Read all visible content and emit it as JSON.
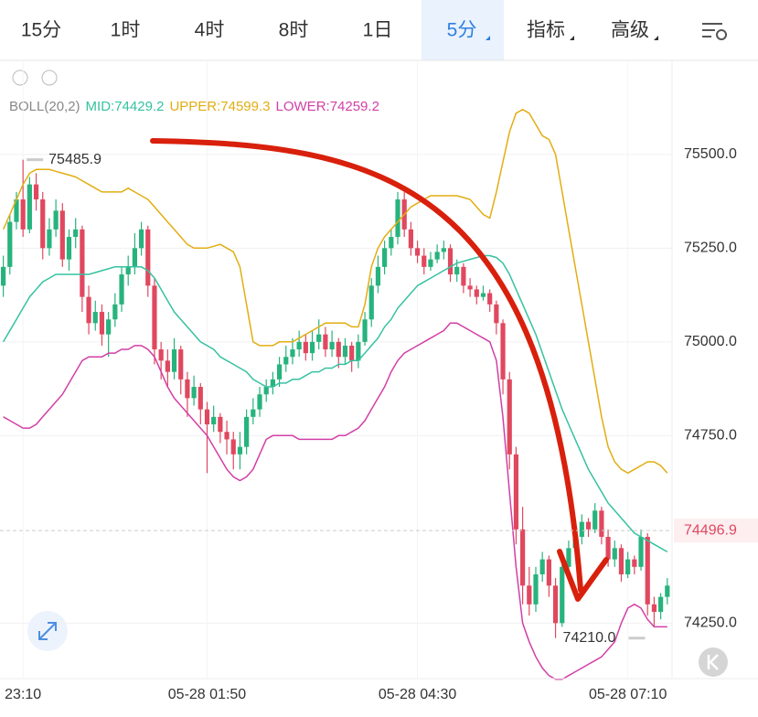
{
  "toolbar": {
    "tabs": [
      "15分",
      "1时",
      "4时",
      "8时",
      "1日",
      "5分",
      "指标",
      "高级"
    ],
    "active": 5
  },
  "chart_data": {
    "type": "candlestick",
    "categories": [
      null,
      null,
      null,
      "23:10",
      null,
      null,
      null,
      null,
      null,
      null,
      null,
      null,
      null,
      null,
      null,
      null,
      null,
      null,
      null,
      null,
      null,
      null,
      null,
      null,
      null,
      null,
      null,
      null,
      null,
      null,
      null,
      "05-28 01:50",
      null,
      null,
      null,
      null,
      null,
      null,
      null,
      null,
      null,
      null,
      null,
      null,
      null,
      null,
      null,
      null,
      null,
      null,
      null,
      null,
      null,
      null,
      null,
      null,
      null,
      null,
      null,
      null,
      null,
      null,
      null,
      "05-28 04:30",
      null,
      null,
      null,
      null,
      null,
      null,
      null,
      null,
      null,
      null,
      null,
      null,
      null,
      null,
      null,
      null,
      null,
      null,
      null,
      null,
      null,
      null,
      null,
      null,
      null,
      null,
      null,
      null,
      null,
      null,
      null,
      "05-28 07:10",
      null,
      null,
      null,
      null,
      null,
      null
    ],
    "ohlc": [
      [
        75150,
        75230,
        75120,
        75200
      ],
      [
        75200,
        75340,
        75180,
        75320
      ],
      [
        75320,
        75400,
        75300,
        75380
      ],
      [
        75380,
        75485.9,
        75280,
        75300
      ],
      [
        75300,
        75440,
        75290,
        75420
      ],
      [
        75420,
        75450,
        75350,
        75380
      ],
      [
        75380,
        75400,
        75220,
        75250
      ],
      [
        75250,
        75330,
        75230,
        75300
      ],
      [
        75300,
        75380,
        75280,
        75350
      ],
      [
        75350,
        75370,
        75200,
        75220
      ],
      [
        75220,
        75300,
        75190,
        75280
      ],
      [
        75280,
        75330,
        75250,
        75300
      ],
      [
        75300,
        75310,
        75080,
        75120
      ],
      [
        75120,
        75150,
        75020,
        75050
      ],
      [
        75050,
        75110,
        75030,
        75080
      ],
      [
        75080,
        75100,
        74990,
        75020
      ],
      [
        75020,
        75080,
        74960,
        75060
      ],
      [
        75060,
        75130,
        75040,
        75100
      ],
      [
        75100,
        75200,
        75080,
        75180
      ],
      [
        75180,
        75230,
        75150,
        75200
      ],
      [
        75200,
        75290,
        75180,
        75250
      ],
      [
        75250,
        75320,
        75230,
        75300
      ],
      [
        75300,
        75310,
        75120,
        75150
      ],
      [
        75150,
        75170,
        74940,
        74980
      ],
      [
        74980,
        75000,
        74900,
        74950
      ],
      [
        74950,
        74980,
        74880,
        74920
      ],
      [
        74920,
        75010,
        74900,
        74980
      ],
      [
        74980,
        74990,
        74860,
        74900
      ],
      [
        74900,
        74920,
        74800,
        74850
      ],
      [
        74850,
        74910,
        74830,
        74880
      ],
      [
        74880,
        74890,
        74780,
        74820
      ],
      [
        74820,
        74840,
        74650,
        74780
      ],
      [
        74780,
        74830,
        74760,
        74800
      ],
      [
        74800,
        74810,
        74730,
        74760
      ],
      [
        74760,
        74790,
        74700,
        74740
      ],
      [
        74740,
        74760,
        74660,
        74700
      ],
      [
        74700,
        74760,
        74660,
        74720
      ],
      [
        74720,
        74820,
        74700,
        74800
      ],
      [
        74800,
        74850,
        74780,
        74820
      ],
      [
        74820,
        74880,
        74800,
        74860
      ],
      [
        74860,
        74900,
        74840,
        74880
      ],
      [
        74880,
        74920,
        74860,
        74900
      ],
      [
        74900,
        74960,
        74880,
        74940
      ],
      [
        74940,
        74990,
        74920,
        74960
      ],
      [
        74960,
        75010,
        74940,
        74980
      ],
      [
        74980,
        75030,
        74960,
        75000
      ],
      [
        75000,
        75020,
        74950,
        74970
      ],
      [
        74970,
        75030,
        74950,
        75000
      ],
      [
        75000,
        75060,
        74980,
        75020
      ],
      [
        75020,
        75040,
        74960,
        74980
      ],
      [
        74980,
        75030,
        74960,
        75000
      ],
      [
        75000,
        75010,
        74930,
        74960
      ],
      [
        74960,
        75010,
        74940,
        74990
      ],
      [
        74990,
        75000,
        74920,
        74950
      ],
      [
        74950,
        75020,
        74930,
        75000
      ],
      [
        75000,
        75080,
        74990,
        75060
      ],
      [
        75060,
        75170,
        75040,
        75150
      ],
      [
        75150,
        75230,
        75130,
        75200
      ],
      [
        75200,
        75270,
        75180,
        75250
      ],
      [
        75250,
        75300,
        75230,
        75280
      ],
      [
        75280,
        75400,
        75260,
        75380
      ],
      [
        75380,
        75400,
        75280,
        75300
      ],
      [
        75300,
        75320,
        75230,
        75250
      ],
      [
        75250,
        75270,
        75210,
        75230
      ],
      [
        75230,
        75250,
        75180,
        75200
      ],
      [
        75200,
        75240,
        75190,
        75220
      ],
      [
        75220,
        75260,
        75210,
        75240
      ],
      [
        75240,
        75270,
        75220,
        75250
      ],
      [
        75250,
        75260,
        75160,
        75180
      ],
      [
        75180,
        75220,
        75160,
        75200
      ],
      [
        75200,
        75210,
        75130,
        75150
      ],
      [
        75150,
        75170,
        75120,
        75140
      ],
      [
        75140,
        75150,
        75100,
        75120
      ],
      [
        75120,
        75150,
        75110,
        75130
      ],
      [
        75130,
        75140,
        75080,
        75100
      ],
      [
        75100,
        75110,
        75020,
        75050
      ],
      [
        75050,
        75060,
        74860,
        74900
      ],
      [
        74900,
        74920,
        74660,
        74700
      ],
      [
        74700,
        74720,
        74460,
        74500
      ],
      [
        74500,
        74560,
        74300,
        74350
      ],
      [
        74350,
        74400,
        74270,
        74300
      ],
      [
        74300,
        74400,
        74280,
        74380
      ],
      [
        74380,
        74440,
        74360,
        74420
      ],
      [
        74420,
        74430,
        74320,
        74350
      ],
      [
        74350,
        74370,
        74210,
        74250
      ],
      [
        74250,
        74420,
        74240,
        74400
      ],
      [
        74400,
        74470,
        74380,
        74450
      ],
      [
        74450,
        74500,
        74430,
        74480
      ],
      [
        74480,
        74540,
        74460,
        74520
      ],
      [
        74520,
        74530,
        74480,
        74500
      ],
      [
        74500,
        74570,
        74490,
        74550
      ],
      [
        74550,
        74560,
        74460,
        74480
      ],
      [
        74480,
        74500,
        74400,
        74420
      ],
      [
        74420,
        74470,
        74400,
        74450
      ],
      [
        74450,
        74460,
        74360,
        74380
      ],
      [
        74380,
        74440,
        74370,
        74420
      ],
      [
        74420,
        74430,
        74380,
        74400
      ],
      [
        74400,
        74500,
        74390,
        74480
      ],
      [
        74480,
        74490,
        74270,
        74300
      ],
      [
        74300,
        74320,
        74240,
        74280
      ],
      [
        74280,
        74330,
        74260,
        74320
      ],
      [
        74320,
        74370,
        74300,
        74350
      ]
    ],
    "up_color": "#27b37d",
    "down_color": "#e0485f",
    "indicator_label": "BOLL(20,2)",
    "series": [
      {
        "name": "MID:74429.2",
        "color": "#35c2a0",
        "values": [
          75000,
          75030,
          75060,
          75090,
          75120,
          75140,
          75160,
          75170,
          75180,
          75180,
          75180,
          75180,
          75180,
          75180,
          75185,
          75190,
          75195,
          75200,
          75200,
          75200,
          75200,
          75200,
          75190,
          75170,
          75140,
          75110,
          75080,
          75060,
          75040,
          75020,
          75000,
          74990,
          74980,
          74960,
          74950,
          74940,
          74930,
          74920,
          74900,
          74890,
          74880,
          74880,
          74890,
          74890,
          74900,
          74900,
          74910,
          74920,
          74920,
          74930,
          74930,
          74940,
          74940,
          74950,
          74950,
          74970,
          74990,
          75010,
          75040,
          75060,
          75090,
          75110,
          75130,
          75150,
          75160,
          75170,
          75180,
          75190,
          75200,
          75210,
          75215,
          75220,
          75225,
          75230,
          75230,
          75225,
          75210,
          75180,
          75140,
          75100,
          75060,
          75020,
          74970,
          74920,
          74870,
          74820,
          74780,
          74740,
          74700,
          74660,
          74630,
          74600,
          74570,
          74550,
          74530,
          74510,
          74490,
          74480,
          74470,
          74460,
          74450,
          74440
        ]
      },
      {
        "name": "UPPER:74599.3",
        "color": "#e3ad12",
        "values": [
          75300,
          75340,
          75380,
          75420,
          75450,
          75460,
          75460,
          75460,
          75455,
          75450,
          75445,
          75440,
          75430,
          75420,
          75410,
          75400,
          75400,
          75400,
          75400,
          75410,
          75400,
          75390,
          75380,
          75360,
          75340,
          75320,
          75300,
          75280,
          75260,
          75250,
          75250,
          75250,
          75255,
          75260,
          75250,
          75240,
          75200,
          75100,
          75000,
          74990,
          74990,
          74990,
          75000,
          75000,
          75000,
          75010,
          75020,
          75030,
          75040,
          75050,
          75050,
          75050,
          75050,
          75040,
          75040,
          75100,
          75200,
          75250,
          75280,
          75300,
          75320,
          75340,
          75360,
          75370,
          75380,
          75390,
          75390,
          75390,
          75390,
          75390,
          75385,
          75380,
          75360,
          75340,
          75330,
          75400,
          75480,
          75560,
          75610,
          75620,
          75610,
          75580,
          75550,
          75540,
          75500,
          75400,
          75300,
          75200,
          75100,
          75000,
          74900,
          74800,
          74720,
          74680,
          74660,
          74650,
          74660,
          74670,
          74680,
          74680,
          74670,
          74650
        ]
      },
      {
        "name": "LOWER:74259.2",
        "color": "#d23fa6",
        "values": [
          74800,
          74790,
          74780,
          74770,
          74770,
          74780,
          74800,
          74820,
          74840,
          74860,
          74890,
          74920,
          74950,
          74960,
          74960,
          74960,
          74970,
          74970,
          74980,
          74980,
          74990,
          74990,
          74980,
          74960,
          74920,
          74880,
          74850,
          74830,
          74810,
          74790,
          74770,
          74750,
          74720,
          74690,
          74660,
          74640,
          74630,
          74640,
          74660,
          74700,
          74740,
          74750,
          74750,
          74750,
          74750,
          74740,
          74740,
          74740,
          74740,
          74740,
          74740,
          74750,
          74750,
          74760,
          74770,
          74790,
          74820,
          74850,
          74880,
          74920,
          74950,
          74970,
          74980,
          74990,
          75000,
          75010,
          75020,
          75030,
          75050,
          75050,
          75040,
          75030,
          75020,
          75010,
          75000,
          74950,
          74800,
          74600,
          74400,
          74250,
          74200,
          74160,
          74130,
          74110,
          74100,
          74100,
          74110,
          74120,
          74130,
          74140,
          74150,
          74160,
          74180,
          74200,
          74250,
          74290,
          74300,
          74290,
          74260,
          74240,
          74240,
          74240
        ]
      }
    ],
    "ylim": [
      74102,
      75746
    ],
    "yticks": [
      {
        "value": 75500,
        "label": "75500.0"
      },
      {
        "value": 75250,
        "label": "75250.0"
      },
      {
        "value": 75000,
        "label": "75000.0"
      },
      {
        "value": 74750,
        "label": "74750.0"
      },
      {
        "value": 74250,
        "label": "74250.0"
      }
    ],
    "grid": true,
    "max_label": 75485.9,
    "min_label": {
      "value": 74210,
      "label": "74210.0"
    },
    "last_price": 74496.9
  }
}
